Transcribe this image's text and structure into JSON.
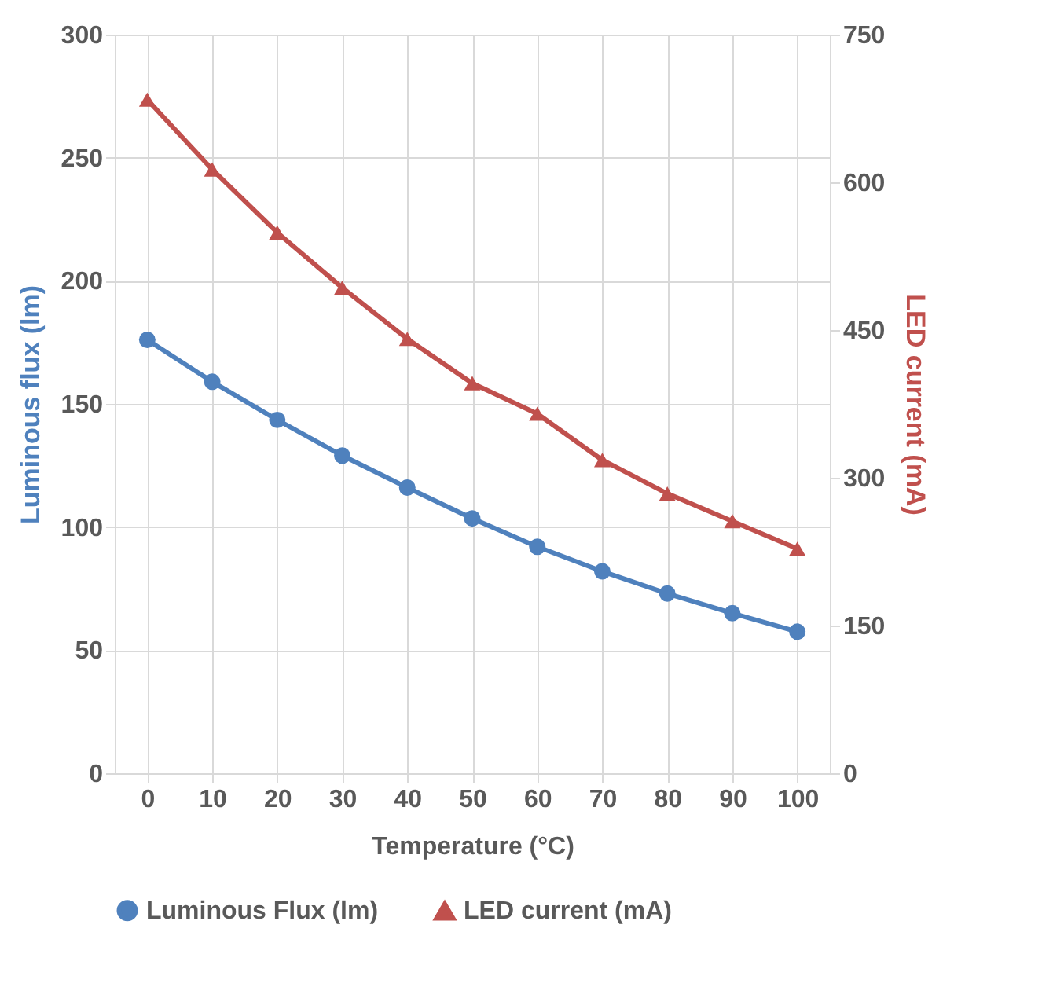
{
  "chart_data": {
    "type": "line",
    "xlabel": "Temperature (°C)",
    "ylabel": "Luminous flux (lm)",
    "y2label": "LED current (mA)",
    "categories": [
      "0",
      "10",
      "20",
      "30",
      "40",
      "50",
      "60",
      "70",
      "80",
      "90",
      "100"
    ],
    "series": [
      {
        "name": "Luminous Flux (lm)",
        "color": "#4f81bd",
        "marker": "circle",
        "values": [
          176,
          159,
          143.5,
          129,
          116,
          103.5,
          92,
          82,
          73,
          65,
          57.5
        ]
      },
      {
        "name": "LED current (mA)",
        "color": "#c0504d",
        "marker": "triangle",
        "axis": "y2",
        "values": [
          684,
          613,
          549,
          493,
          441,
          396,
          365,
          318,
          284,
          256,
          228
        ]
      }
    ],
    "ylim": [
      0,
      300
    ],
    "yticks": [
      0,
      50,
      100,
      150,
      200,
      250,
      300
    ],
    "y2lim": [
      0,
      750
    ],
    "y2ticks": [
      0,
      150,
      300,
      450,
      600,
      750
    ],
    "grid": true,
    "legend": "bottom"
  }
}
